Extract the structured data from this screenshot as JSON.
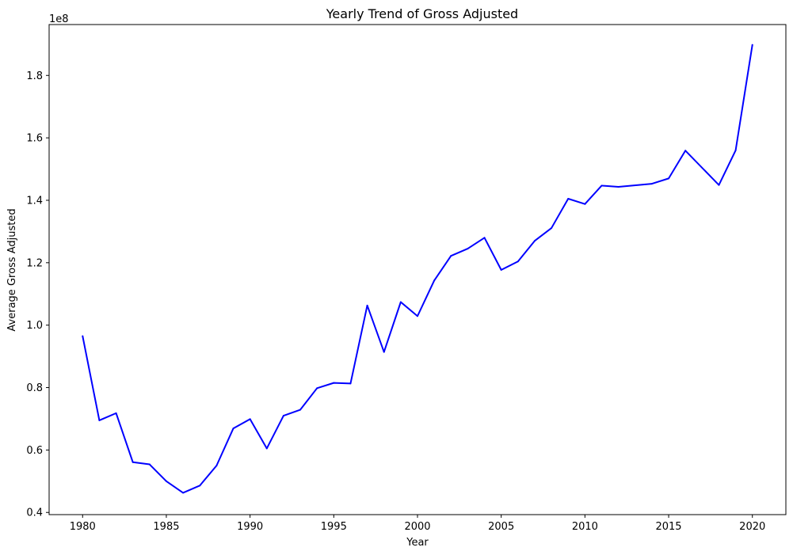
{
  "chart_data": {
    "type": "line",
    "title": "Yearly Trend of Gross Adjusted",
    "xlabel": "Year",
    "ylabel": "Average Gross Adjusted",
    "y_offset_label": "1e8",
    "x_ticks": [
      1980,
      1985,
      1990,
      1995,
      2000,
      2005,
      2010,
      2015,
      2020
    ],
    "y_ticks": [
      0.4,
      0.6,
      0.8,
      1.0,
      1.2,
      1.4,
      1.6,
      1.8
    ],
    "y_tick_labels": [
      "0.4",
      "0.6",
      "0.8",
      "1.0",
      "1.2",
      "1.4",
      "1.6",
      "1.8"
    ],
    "xlim": [
      1978.0,
      2022.0
    ],
    "ylim": [
      0.393,
      1.963
    ],
    "grid": false,
    "line_color": "#0000ff",
    "series": [
      {
        "x": [
          1980,
          1981,
          1982,
          1983,
          1984,
          1985,
          1986,
          1987,
          1988,
          1989,
          1990,
          1991,
          1992,
          1993,
          1994,
          1995,
          1996,
          1997,
          1998,
          1999,
          2000,
          2001,
          2002,
          2003,
          2004,
          2005,
          2006,
          2007,
          2008,
          2009,
          2010,
          2011,
          2012,
          2014,
          2015,
          2016,
          2018,
          2019,
          2020
        ],
        "values": [
          0.965,
          0.695,
          0.718,
          0.561,
          0.554,
          0.5,
          0.463,
          0.486,
          0.55,
          0.669,
          0.699,
          0.605,
          0.71,
          0.729,
          0.798,
          0.815,
          0.813,
          1.063,
          0.914,
          1.074,
          1.029,
          1.143,
          1.222,
          1.245,
          1.28,
          1.177,
          1.204,
          1.27,
          1.311,
          1.405,
          1.388,
          1.447,
          1.443,
          1.453,
          1.47,
          1.559,
          1.449,
          1.56,
          1.898
        ]
      }
    ]
  }
}
